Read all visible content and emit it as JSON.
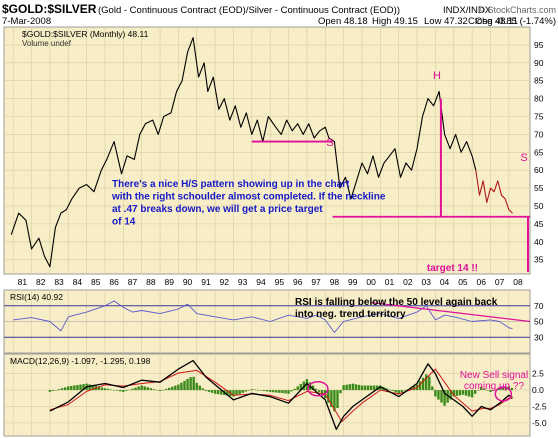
{
  "header": {
    "symbol": "$GOLD:$SILVER",
    "description": "(Gold - Continuous Contract (EOD)/Silver - Continuous Contract (EOD))",
    "exchange": "INDX/INDX",
    "brand": "© StockCharts.com",
    "date": "7-Mar-2008",
    "open": "Open 48.18",
    "high": "High 49.15",
    "low": "Low 47.32",
    "close": "Close 48.11",
    "change": "Chg -0.85 (-1.74%)",
    "change_arrow": "▼"
  },
  "colors": {
    "panel_bg": "#f7edc6",
    "price_line": "#000000",
    "recent_line": "#b01818",
    "annotation": "#e0109a",
    "note_text": "#1418c8",
    "rsi_line": "#5a5ad0",
    "macd_line": "#000000",
    "signal_line": "#d01818",
    "histogram": "#3a8a1a"
  },
  "chart_data": [
    {
      "type": "line",
      "panel": "price",
      "legend": "$GOLD:$SILVER (Monthly) 48.11",
      "volume_label": "Volume undef",
      "x_ticks": [
        "81",
        "82",
        "83",
        "84",
        "85",
        "86",
        "87",
        "88",
        "89",
        "90",
        "91",
        "92",
        "93",
        "94",
        "95",
        "96",
        "97",
        "98",
        "99",
        "00",
        "01",
        "02",
        "03",
        "04",
        "05",
        "06",
        "07",
        "08"
      ],
      "y_ticks": [
        35,
        40,
        45,
        50,
        55,
        60,
        65,
        70,
        75,
        80,
        85,
        90,
        95
      ],
      "ylim": [
        31,
        100
      ],
      "series": [
        {
          "x": [
            1980.9,
            1981.3,
            1981.7,
            1982.0,
            1982.4,
            1982.7,
            1983.0,
            1983.3,
            1983.6,
            1983.9,
            1984.2,
            1984.6,
            1985.0,
            1985.4,
            1985.8,
            1986.1,
            1986.5,
            1986.9,
            1987.2,
            1987.6,
            1987.9,
            1988.2,
            1988.6,
            1988.9,
            1989.2,
            1989.6,
            1989.9,
            1990.2,
            1990.5,
            1990.8,
            1991.1,
            1991.4,
            1991.6,
            1991.9,
            1992.2,
            1992.5,
            1992.8,
            1993.1,
            1993.4,
            1993.7,
            1994.0,
            1994.3,
            1994.6,
            1994.9,
            1995.3,
            1995.6,
            1995.9,
            1996.2,
            1996.5,
            1996.8,
            1997.1,
            1997.4,
            1997.7,
            1998.0,
            1998.2,
            1998.5,
            1998.8,
            1999.1,
            1999.4,
            1999.7,
            2000.0,
            2000.3,
            2000.6,
            2000.9,
            2001.2,
            2001.5,
            2001.8,
            2002.1,
            2002.4,
            2002.7,
            2003.0,
            2003.3,
            2003.6,
            2003.9,
            2004.2,
            2004.5,
            2004.8,
            2005.1,
            2005.4,
            2005.7,
            2006.0,
            2006.2
          ],
          "values": [
            42,
            48,
            46,
            38,
            41,
            36,
            33,
            44,
            48,
            49,
            52,
            55,
            56,
            54,
            60,
            63,
            68,
            59,
            64,
            63,
            70,
            73,
            74,
            70,
            75,
            76,
            82,
            85,
            93,
            97,
            86,
            90,
            82,
            86,
            77,
            80,
            74,
            78,
            72,
            76,
            70,
            74,
            68,
            75,
            72,
            70,
            74,
            71,
            73,
            70,
            73,
            69,
            71,
            72,
            69,
            68,
            55,
            58,
            52,
            57,
            62,
            59,
            64,
            58,
            62,
            64,
            66,
            58,
            62,
            60,
            66,
            75,
            80,
            78,
            82,
            70,
            66,
            70,
            65,
            68,
            64,
            60
          ]
        },
        {
          "x": [
            2006.2,
            2006.4,
            2006.6,
            2006.8,
            2007.0,
            2007.2,
            2007.4,
            2007.6,
            2007.8,
            2008.0,
            2008.2
          ],
          "values": [
            60,
            53,
            57,
            51,
            55,
            54,
            57,
            53,
            52,
            49,
            48
          ]
        }
      ],
      "annotations": [
        "There's a nice H/S pattern showing up in the chart with the right schoulder almost completed. If the neckline at .47 breaks down, we will get a price target of 14",
        "target 14 !!",
        "H",
        "S",
        "S"
      ]
    },
    {
      "type": "line",
      "panel": "rsi",
      "legend": "RSI(14) 40.92",
      "y_ticks": [
        30,
        50,
        70
      ],
      "ylim": [
        10,
        90
      ],
      "annotations": [
        "RSI is falling below the 50 level again back into neg. trend territory"
      ],
      "series": [
        {
          "x": [
            1981.0,
            1982.0,
            1983.0,
            1983.6,
            1984.0,
            1985.0,
            1986.0,
            1986.5,
            1987.0,
            1987.5,
            1988.0,
            1989.0,
            1990.0,
            1990.5,
            1991.0,
            1992.0,
            1993.0,
            1994.0,
            1995.0,
            1996.0,
            1997.0,
            1997.5,
            1998.0,
            1998.5,
            1999.0,
            2000.0,
            2001.0,
            2002.0,
            2003.0,
            2003.5,
            2004.0,
            2004.5,
            2005.0,
            2006.0,
            2007.0,
            2007.5,
            2008.0,
            2008.2
          ],
          "values": [
            52,
            55,
            50,
            38,
            56,
            62,
            70,
            76,
            68,
            62,
            64,
            60,
            66,
            72,
            60,
            56,
            52,
            56,
            50,
            58,
            54,
            58,
            52,
            36,
            50,
            56,
            60,
            54,
            62,
            70,
            52,
            58,
            56,
            50,
            52,
            50,
            42,
            41
          ]
        }
      ]
    },
    {
      "type": "line",
      "panel": "macd",
      "legend": "MACD(12,26,9) -1.097, -1.295, 0.198",
      "y_ticks": [
        2.5,
        0.0,
        -2.5,
        -5.0
      ],
      "ylim": [
        -7,
        5.5
      ],
      "annotations": [
        "New Sell signal coming up ??"
      ],
      "series": [
        {
          "name": "MACD",
          "x": [
            1983.0,
            1984.0,
            1985.0,
            1986.0,
            1987.0,
            1988.0,
            1989.0,
            1990.0,
            1990.8,
            1991.5,
            1992.0,
            1993.0,
            1994.0,
            1995.0,
            1996.0,
            1997.0,
            1998.0,
            1998.6,
            1999.0,
            1999.5,
            2000.0,
            2001.0,
            2002.0,
            2003.0,
            2003.6,
            2004.0,
            2004.5,
            2005.0,
            2005.5,
            2006.0,
            2006.5,
            2007.0,
            2007.5,
            2008.0,
            2008.2
          ],
          "values": [
            -3.2,
            -1.8,
            0.5,
            1.0,
            0.4,
            1.5,
            1.2,
            3.2,
            4.5,
            2.0,
            0.8,
            -1.5,
            -0.5,
            -1.0,
            -2.0,
            1.0,
            -1.5,
            -6.0,
            -4.0,
            -2.5,
            -1.5,
            0.5,
            -1.0,
            1.0,
            4.0,
            2.5,
            -0.5,
            -1.5,
            -2.5,
            -4.0,
            -2.5,
            -3.0,
            -2.0,
            -0.8,
            -1.1
          ]
        },
        {
          "name": "Signal",
          "x": [
            1983.0,
            1984.0,
            1985.0,
            1986.0,
            1987.0,
            1988.0,
            1989.0,
            1990.0,
            1991.0,
            1992.0,
            1993.0,
            1994.0,
            1995.0,
            1996.0,
            1997.0,
            1998.0,
            1998.9,
            1999.5,
            2000.0,
            2001.0,
            2002.0,
            2003.0,
            2004.0,
            2004.6,
            2005.0,
            2006.0,
            2006.6,
            2007.0,
            2007.5,
            2008.0,
            2008.2
          ],
          "values": [
            -3.0,
            -2.2,
            -0.2,
            0.8,
            0.6,
            1.0,
            1.3,
            2.6,
            3.0,
            1.2,
            -0.8,
            -0.6,
            -0.8,
            -1.6,
            -0.2,
            -0.6,
            -4.8,
            -3.2,
            -2.0,
            0.0,
            -0.6,
            0.4,
            3.2,
            0.8,
            -0.8,
            -3.2,
            -2.8,
            -2.8,
            -2.2,
            -1.2,
            -1.3
          ]
        }
      ]
    }
  ]
}
